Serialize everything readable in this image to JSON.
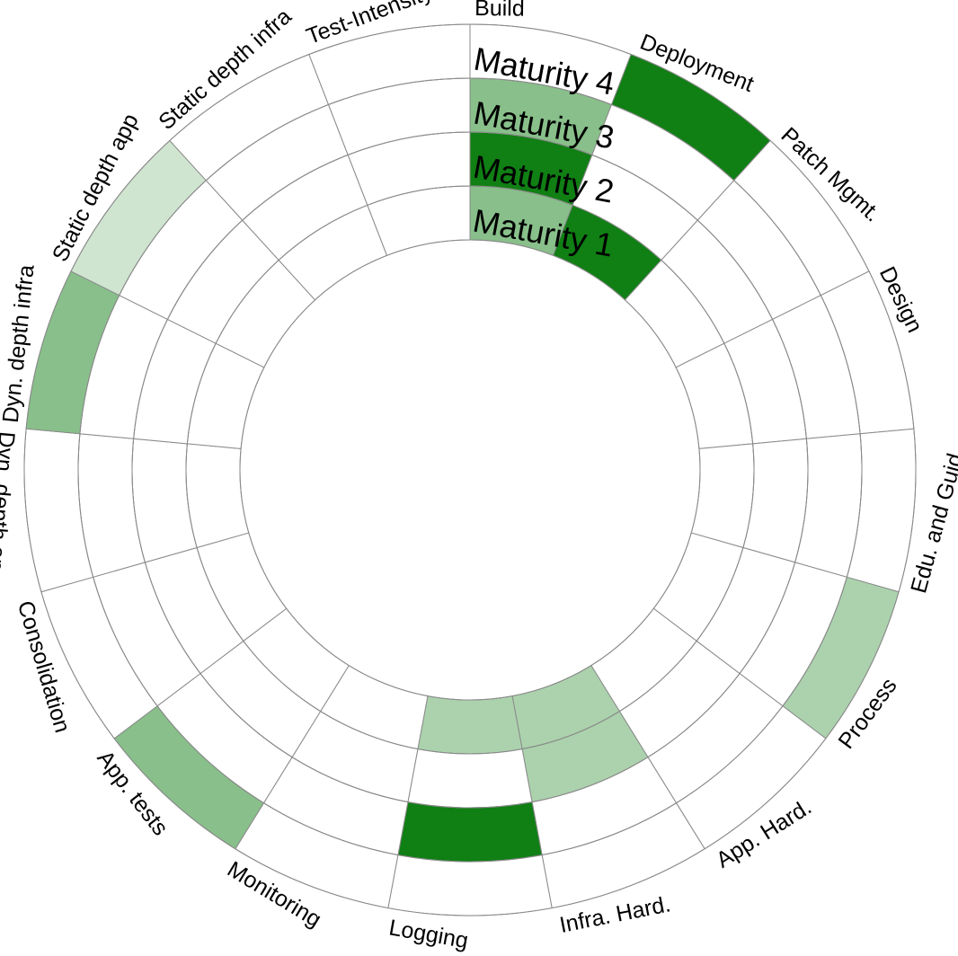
{
  "chart_data": {
    "type": "radial-heatmap",
    "categories": [
      "Build",
      "Deployment",
      "Patch Mgmt.",
      "Design",
      "Edu. and Guid.",
      "Process",
      "App. Hard.",
      "Infra. Hard.",
      "Logging",
      "Monitoring",
      "App. tests",
      "Consolidation",
      "Dyn. depth app",
      "Dyn. depth infra",
      "Static depth app",
      "Static depth infra",
      "Test-Intensity"
    ],
    "rings": [
      "Maturity 1",
      "Maturity 2",
      "Maturity 3",
      "Maturity 4"
    ],
    "values": [
      [
        0.5,
        1.0,
        0.5,
        0.0
      ],
      [
        1.0,
        0.0,
        0.0,
        1.0
      ],
      [
        0.0,
        0.0,
        0.0,
        0.0
      ],
      [
        0.0,
        0.0,
        0.0,
        0.0
      ],
      [
        0.0,
        0.0,
        0.0,
        0.0
      ],
      [
        0.0,
        0.0,
        0.0,
        0.35
      ],
      [
        0.0,
        0.0,
        0.0,
        0.0
      ],
      [
        0.35,
        0.35,
        0.0,
        0.0
      ],
      [
        0.35,
        0.0,
        1.0,
        0.0
      ],
      [
        0.0,
        0.0,
        0.0,
        0.0
      ],
      [
        0.0,
        0.0,
        0.0,
        0.5
      ],
      [
        0.0,
        0.0,
        0.0,
        0.0
      ],
      [
        0.0,
        0.0,
        0.0,
        0.0
      ],
      [
        0.0,
        0.0,
        0.0,
        0.5
      ],
      [
        0.0,
        0.0,
        0.0,
        0.2
      ],
      [
        0.0,
        0.0,
        0.0,
        0.0
      ],
      [
        0.0,
        0.0,
        0.0,
        0.0
      ]
    ],
    "color_scale": {
      "low": "#ffffff",
      "high": "#107f14"
    },
    "legend": false,
    "grid": true
  }
}
